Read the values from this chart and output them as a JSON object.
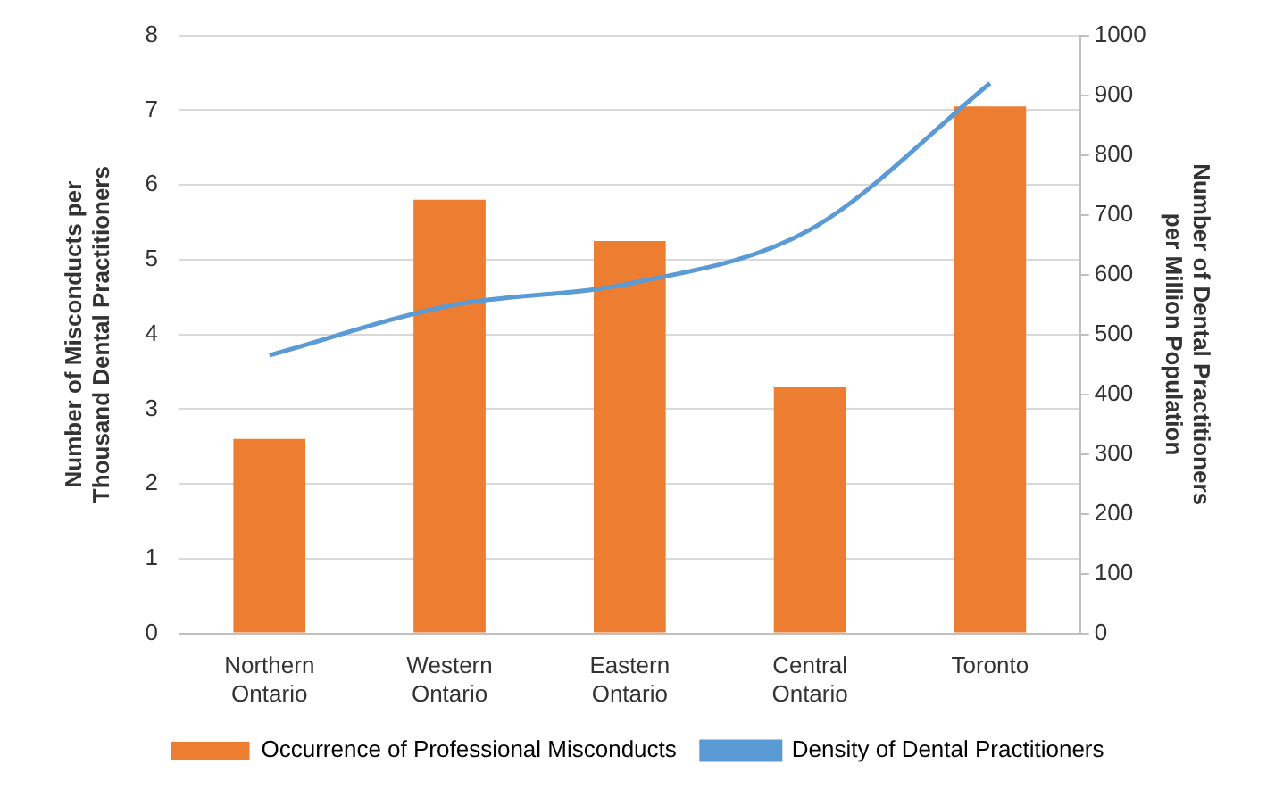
{
  "chart_data": {
    "type": "bar",
    "categories": [
      "Northern Ontario",
      "Western Ontario",
      "Eastern Ontario",
      "Central Ontario",
      "Toronto"
    ],
    "series": [
      {
        "name": "Occurrence of Professional Misconducts",
        "color": "#ed7d31",
        "values": [
          2.6,
          5.8,
          5.25,
          3.3,
          7.05
        ]
      },
      {
        "name": "Density of Dental Practitioners",
        "type": "line",
        "axis": "y2",
        "color": "#5b9bd5",
        "values": [
          465,
          548,
          585,
          675,
          920
        ]
      }
    ],
    "ylabel": "Number of Misconducts per Thousand Dental Practitioners",
    "y2label": "Number of Dental Practitioners per Million Population",
    "ylim": [
      0,
      8
    ],
    "yticks": [
      0,
      1,
      2,
      3,
      4,
      5,
      6,
      7,
      8
    ],
    "y2lim": [
      0,
      1000
    ],
    "y2ticks": [
      0,
      100,
      200,
      300,
      400,
      500,
      600,
      700,
      800,
      900,
      1000
    ],
    "grid": "y",
    "legend": "bottom",
    "marker": "none"
  }
}
